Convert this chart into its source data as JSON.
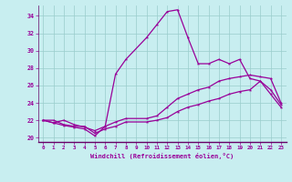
{
  "xlabel": "Windchill (Refroidissement éolien,°C)",
  "background_color": "#c8eef0",
  "grid_color": "#99cccc",
  "line_color": "#990099",
  "spine_color": "#660066",
  "xlim": [
    -0.5,
    23.5
  ],
  "ylim": [
    19.5,
    35.2
  ],
  "xticks": [
    0,
    1,
    2,
    3,
    4,
    5,
    6,
    7,
    8,
    9,
    10,
    11,
    12,
    13,
    14,
    15,
    16,
    17,
    18,
    19,
    20,
    21,
    22,
    23
  ],
  "yticks": [
    20,
    22,
    24,
    26,
    28,
    30,
    32,
    34
  ],
  "series1_x": [
    0,
    1,
    2,
    3,
    4,
    5,
    6,
    7,
    8,
    10,
    11,
    12,
    13,
    14,
    15,
    16,
    17,
    18,
    19,
    20,
    21,
    22,
    23
  ],
  "series1_y": [
    22.0,
    21.7,
    21.4,
    21.2,
    21.0,
    20.2,
    21.3,
    27.3,
    29.0,
    31.5,
    33.0,
    34.5,
    34.7,
    31.5,
    28.5,
    28.5,
    29.0,
    28.5,
    29.0,
    26.8,
    26.5,
    25.0,
    23.5
  ],
  "series2_x": [
    0,
    1,
    2,
    3,
    4,
    5,
    6,
    7,
    8,
    10,
    11,
    12,
    13,
    14,
    15,
    16,
    17,
    18,
    19,
    20,
    21,
    22,
    23
  ],
  "series2_y": [
    22.0,
    21.7,
    22.0,
    21.5,
    21.2,
    20.8,
    21.3,
    21.8,
    22.2,
    22.2,
    22.5,
    23.5,
    24.5,
    25.0,
    25.5,
    25.8,
    26.5,
    26.8,
    27.0,
    27.2,
    27.0,
    26.8,
    24.0
  ],
  "series3_x": [
    0,
    1,
    2,
    3,
    4,
    5,
    6,
    7,
    8,
    10,
    11,
    12,
    13,
    14,
    15,
    16,
    17,
    18,
    19,
    20,
    21,
    22,
    23
  ],
  "series3_y": [
    22.0,
    22.0,
    21.5,
    21.3,
    21.3,
    20.5,
    21.0,
    21.3,
    21.8,
    21.8,
    22.0,
    22.3,
    23.0,
    23.5,
    23.8,
    24.2,
    24.5,
    25.0,
    25.3,
    25.5,
    26.5,
    25.5,
    23.8
  ]
}
